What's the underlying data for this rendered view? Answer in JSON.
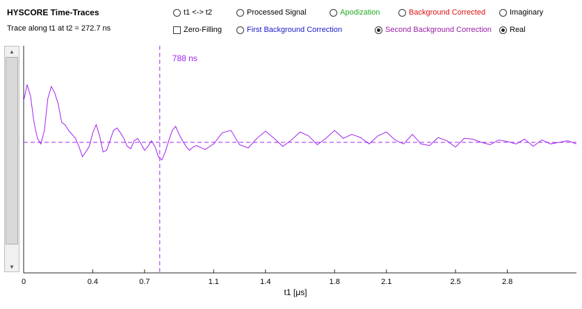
{
  "header": {
    "title": "HYSCORE Time-Traces",
    "subtitle": "Trace along t1 at t2 = 272.7 ns"
  },
  "options": {
    "swap": {
      "label": "t1 <-> t2",
      "checked": false
    },
    "zero_filling": {
      "label": "Zero-Filling",
      "checked": false
    },
    "processed_signal": {
      "label": "Processed Signal",
      "checked": false,
      "color": "#000000"
    },
    "first_background": {
      "label": "First Background Correction",
      "checked": false,
      "color": "#1a1acc"
    },
    "apodization": {
      "label": "Apodization",
      "checked": false,
      "color": "#22aa22"
    },
    "background_corrected": {
      "label": "Background Corrected",
      "checked": false,
      "color": "#dd1111"
    },
    "second_background": {
      "label": "Second Background Correction",
      "checked": true,
      "color": "#9b1fa8"
    },
    "imaginary": {
      "label": "Imaginary",
      "checked": false
    },
    "real": {
      "label": "Real",
      "checked": true
    }
  },
  "chart_data": {
    "type": "line",
    "xlabel": "t1 [μs]",
    "xticks": [
      0,
      0.4,
      0.7,
      1.1,
      1.4,
      1.8,
      2.1,
      2.5,
      2.8
    ],
    "xlim": [
      0,
      3.2
    ],
    "ylim": [
      -1,
      1
    ],
    "color": "#a020f0",
    "baseline_y": 0,
    "marker": {
      "x": 0.788,
      "label": "788 ns"
    },
    "series": [
      {
        "x": [
          0.0,
          0.02,
          0.04,
          0.06,
          0.08,
          0.1,
          0.12,
          0.14,
          0.16,
          0.18,
          0.2,
          0.22,
          0.24,
          0.26,
          0.28,
          0.3,
          0.32,
          0.34,
          0.36,
          0.38,
          0.4,
          0.42,
          0.44,
          0.46,
          0.48,
          0.5,
          0.52,
          0.54,
          0.56,
          0.58,
          0.6,
          0.62,
          0.64,
          0.66,
          0.68,
          0.7,
          0.72,
          0.74,
          0.76,
          0.78,
          0.8,
          0.82,
          0.84,
          0.86,
          0.88,
          0.9,
          0.92,
          0.94,
          0.96,
          0.98,
          1.0,
          1.05,
          1.1,
          1.15,
          1.2,
          1.25,
          1.3,
          1.35,
          1.4,
          1.45,
          1.5,
          1.55,
          1.6,
          1.65,
          1.7,
          1.75,
          1.8,
          1.85,
          1.9,
          1.95,
          2.0,
          2.05,
          2.1,
          2.15,
          2.2,
          2.25,
          2.3,
          2.35,
          2.4,
          2.45,
          2.5,
          2.55,
          2.6,
          2.65,
          2.7,
          2.75,
          2.8,
          2.85,
          2.9,
          2.95,
          3.0,
          3.05,
          3.1,
          3.15,
          3.2
        ],
        "y": [
          0.52,
          0.72,
          0.58,
          0.25,
          0.05,
          -0.02,
          0.15,
          0.55,
          0.7,
          0.62,
          0.48,
          0.25,
          0.22,
          0.15,
          0.1,
          0.05,
          -0.05,
          -0.18,
          -0.12,
          -0.05,
          0.12,
          0.22,
          0.08,
          -0.12,
          -0.1,
          0.02,
          0.15,
          0.18,
          0.12,
          0.05,
          -0.05,
          -0.08,
          0.02,
          0.05,
          -0.02,
          -0.1,
          -0.05,
          0.02,
          -0.05,
          -0.18,
          -0.22,
          -0.12,
          0.02,
          0.15,
          0.2,
          0.1,
          0.02,
          -0.05,
          -0.1,
          -0.06,
          -0.04,
          -0.09,
          -0.02,
          0.12,
          0.15,
          -0.03,
          -0.07,
          0.05,
          0.14,
          0.05,
          -0.05,
          0.03,
          0.13,
          0.08,
          -0.03,
          0.05,
          0.15,
          0.05,
          0.1,
          0.06,
          -0.02,
          0.08,
          0.13,
          0.03,
          -0.02,
          0.1,
          -0.02,
          -0.04,
          0.06,
          0.02,
          -0.06,
          0.05,
          0.04,
          0.0,
          -0.03,
          0.03,
          0.01,
          -0.02,
          0.04,
          -0.05,
          0.03,
          -0.02,
          0.0,
          0.02,
          -0.02
        ]
      }
    ]
  }
}
